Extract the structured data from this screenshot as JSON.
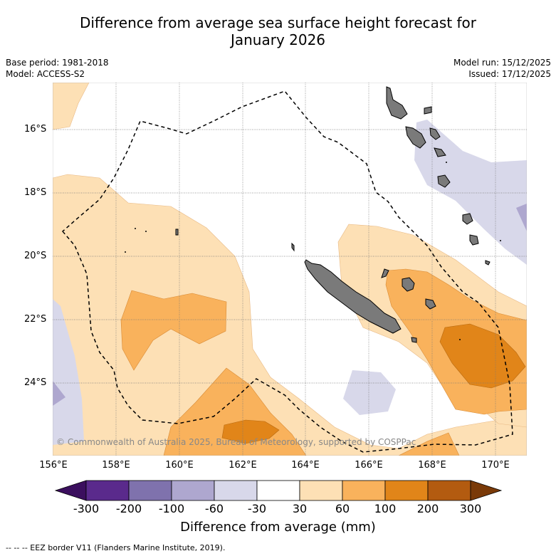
{
  "title_line1": "Difference from average sea surface height forecast for",
  "title_line2": "January 2026",
  "meta_left": [
    "Base period: 1981-2018",
    "Model: ACCESS-S2"
  ],
  "meta_right": [
    "Model run: 15/12/2025",
    "Issued: 17/12/2025"
  ],
  "lat_labels": [
    "16°S",
    "18°S",
    "20°S",
    "22°S",
    "24°S"
  ],
  "lon_labels": [
    "156°E",
    "158°E",
    "160°E",
    "162°E",
    "164°E",
    "166°E",
    "168°E",
    "170°E"
  ],
  "copyright": "© Commonwealth of Australia 2025, Bureau of Meteorology, supported by COSPPac",
  "colorbar": {
    "ticks": [
      "-300",
      "-200",
      "-100",
      "-60",
      "-30",
      "30",
      "60",
      "100",
      "200",
      "300"
    ],
    "colors": [
      "#5a2a8c",
      "#7f72ad",
      "#aea7cf",
      "#d8d8ea",
      "#ffffff",
      "#fde0b5",
      "#f9b25c",
      "#e18519",
      "#b35b10"
    ],
    "min_color": "#3b0f5e",
    "max_color": "#7a3a08",
    "label": "Difference from average (mm)"
  },
  "footer": "--  --  -- EEZ border V11 (Flanders Marine Institute, 2019)."
}
